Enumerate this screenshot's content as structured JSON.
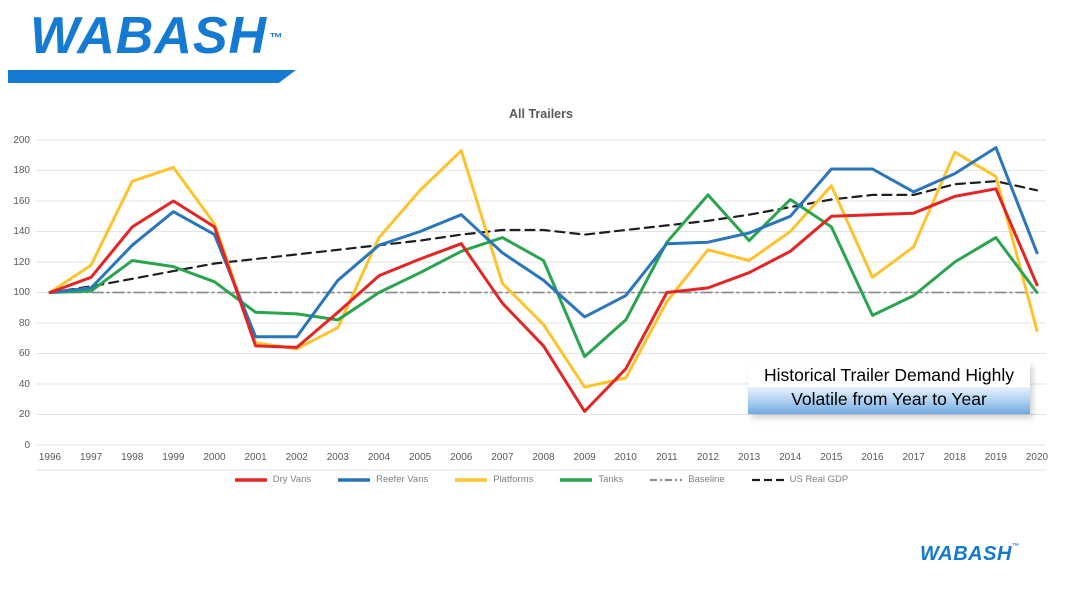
{
  "logo": {
    "wordmark": "WABASH",
    "trademark": "™"
  },
  "footer_logo": {
    "wordmark": "WABASH",
    "trademark": "™"
  },
  "callout": {
    "line1": "Historical Trailer Demand Highly",
    "line2": "Volatile from Year to Year"
  },
  "colors": {
    "brand_blue": "#147ad2",
    "grid": "#e3e3e3",
    "axis_text": "#595959",
    "legend_text": "#7f7f7f"
  },
  "chart_data": {
    "type": "line",
    "title": "All Trailers",
    "x": [
      1996,
      1997,
      1998,
      1999,
      2000,
      2001,
      2002,
      2003,
      2004,
      2005,
      2006,
      2007,
      2008,
      2009,
      2010,
      2011,
      2012,
      2013,
      2014,
      2015,
      2016,
      2017,
      2018,
      2019,
      2020
    ],
    "xlabel": "",
    "ylabel": "",
    "ylim": [
      0,
      200
    ],
    "ytick_step": 20,
    "grid": true,
    "legend_position": "bottom",
    "series": [
      {
        "name": "Dry Vans",
        "color": "#e32526",
        "style": "solid",
        "width": 3,
        "z": 6,
        "values": [
          100,
          110,
          143,
          160,
          143,
          65,
          64,
          87,
          111,
          122,
          132,
          93,
          65,
          22,
          50,
          100,
          103,
          113,
          127,
          150,
          151,
          152,
          163,
          168,
          105
        ]
      },
      {
        "name": "Reefer Vans",
        "color": "#2a75bb",
        "style": "solid",
        "width": 3,
        "z": 5,
        "values": [
          100,
          103,
          131,
          153,
          138,
          71,
          71,
          108,
          131,
          140,
          151,
          126,
          108,
          84,
          98,
          132,
          133,
          139,
          150,
          181,
          181,
          166,
          178,
          195,
          126
        ]
      },
      {
        "name": "Platforms",
        "color": "#fdc32d",
        "style": "solid",
        "width": 3,
        "z": 3,
        "values": [
          100,
          118,
          173,
          182,
          145,
          67,
          63,
          77,
          136,
          167,
          193,
          106,
          79,
          38,
          44,
          94,
          128,
          121,
          140,
          170,
          110,
          130,
          192,
          176,
          75
        ]
      },
      {
        "name": "Tanks",
        "color": "#2aa44e",
        "style": "solid",
        "width": 3,
        "z": 4,
        "values": [
          100,
          101,
          121,
          117,
          107,
          87,
          86,
          82,
          100,
          113,
          127,
          136,
          121,
          58,
          82,
          133,
          164,
          134,
          161,
          143,
          85,
          98,
          120,
          136,
          100
        ]
      },
      {
        "name": "Baseline",
        "color": "#8f8f8f",
        "style": "dashdot",
        "width": 1.8,
        "z": 1,
        "values": [
          100,
          100,
          100,
          100,
          100,
          100,
          100,
          100,
          100,
          100,
          100,
          100,
          100,
          100,
          100,
          100,
          100,
          100,
          100,
          100,
          100,
          100,
          100,
          100,
          100
        ]
      },
      {
        "name": "US Real GDP",
        "color": "#1f1f1f",
        "style": "dashed",
        "width": 2.2,
        "z": 2,
        "values": [
          100,
          104,
          109,
          114,
          119,
          122,
          125,
          128,
          131,
          134,
          138,
          141,
          141,
          138,
          141,
          144,
          147,
          151,
          156,
          161,
          164,
          164,
          171,
          173,
          167
        ]
      }
    ]
  }
}
